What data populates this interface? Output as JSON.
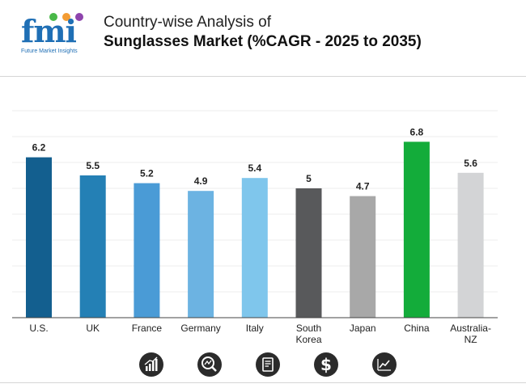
{
  "header": {
    "logo_text": "fmi",
    "logo_tagline": "Future Market Insights",
    "title": "Country-wise Analysis of",
    "subtitle": "Sunglasses Market (%CAGR - 2025 to 2035)"
  },
  "colors": {
    "brand": "#1f6fb5",
    "dot_green": "#49b848",
    "dot_orange": "#f39c34",
    "dot_purple": "#8e44ad",
    "icon_bg": "#2b2b2b"
  },
  "chart_data": {
    "type": "bar",
    "title": "Sunglasses Market (%CAGR - 2025 to 2035)",
    "categories": [
      "U.S.",
      "UK",
      "France",
      "Germany",
      "Italy",
      "South Korea",
      "Japan",
      "China",
      "Australia-NZ"
    ],
    "category_lines": [
      [
        "U.S."
      ],
      [
        "UK"
      ],
      [
        "France"
      ],
      [
        "Germany"
      ],
      [
        "Italy"
      ],
      [
        "South",
        "Korea"
      ],
      [
        "Japan"
      ],
      [
        "China"
      ],
      [
        "Australia-",
        "NZ"
      ]
    ],
    "values": [
      6.2,
      5.5,
      5.2,
      4.9,
      5.4,
      5,
      4.7,
      6.8,
      5.6
    ],
    "value_labels": [
      "6.2",
      "5.5",
      "5.2",
      "4.9",
      "5.4",
      "5",
      "4.7",
      "6.8",
      "5.6"
    ],
    "bar_colors": [
      "#135f8f",
      "#2480b5",
      "#4a9bd6",
      "#6cb3e2",
      "#7fc6ec",
      "#58595b",
      "#a8a8a8",
      "#13ac3a",
      "#d3d4d6"
    ],
    "ylim": [
      0,
      8
    ],
    "xlabel": "",
    "ylabel": "",
    "grid": true,
    "legend": "none"
  },
  "footer_icons": [
    "bar-growth-icon",
    "magnifier-chart-icon",
    "document-icon",
    "dollar-icon",
    "line-chart-icon"
  ]
}
